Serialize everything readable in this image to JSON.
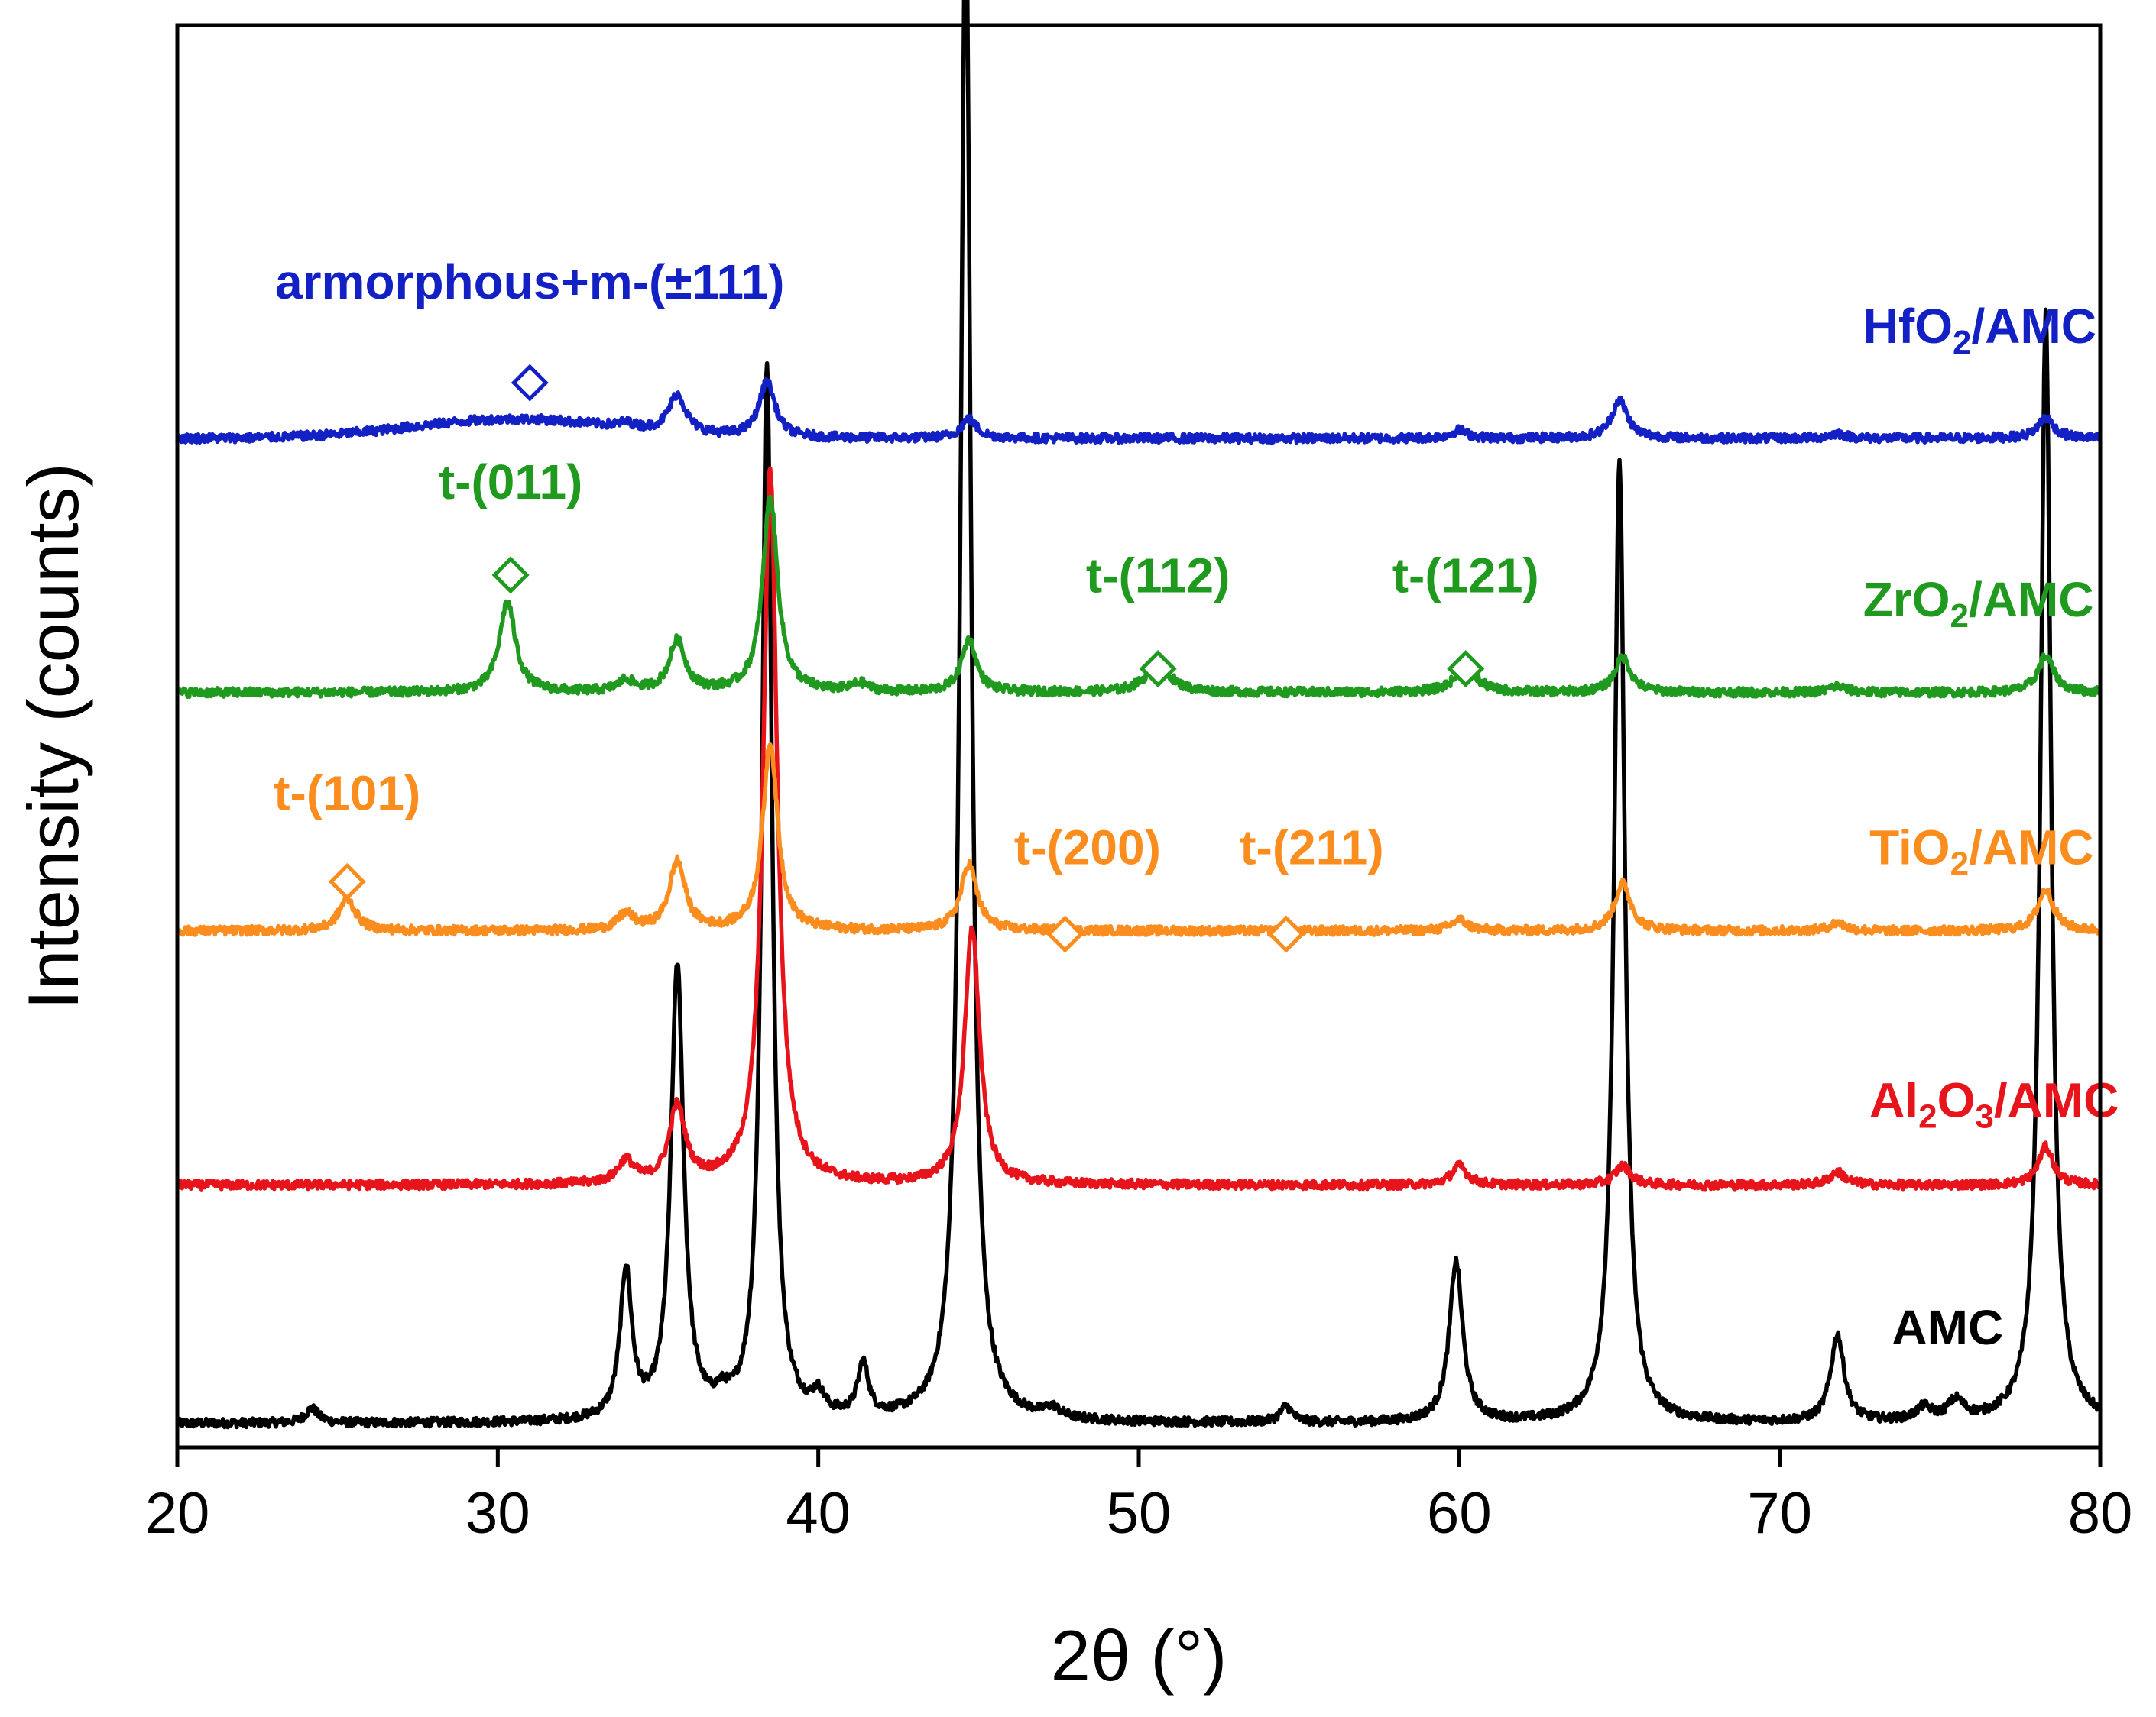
{
  "chart_data": {
    "type": "line",
    "title": "",
    "xlabel": "2θ (°)",
    "ylabel": "Intensity (counts)",
    "xlim": [
      20,
      80
    ],
    "xticks": [
      20,
      30,
      40,
      50,
      60,
      70,
      80
    ],
    "yticks_shown": false,
    "y_scale_note": "stacked patterns, arbitrary offset units (0 = AMC baseline)",
    "series": [
      {
        "name": "AMC",
        "label_main": "AMC",
        "label_sub": "",
        "label_rest": "",
        "color": "#000000",
        "offset": 0,
        "baseline": 0,
        "peaks": [
          [
            24.2,
            0.9,
            0.25
          ],
          [
            34.0,
            9.3,
            0.22
          ],
          [
            35.6,
            28.5,
            0.24
          ],
          [
            37.0,
            0.8,
            0.25
          ],
          [
            38.4,
            66.3,
            0.19
          ],
          [
            40.0,
            1.2,
            0.22
          ],
          [
            41.4,
            3.3,
            0.2
          ],
          [
            44.6,
            95.6,
            0.2
          ],
          [
            47.3,
            0.6,
            0.3
          ],
          [
            54.6,
            1.0,
            0.22
          ],
          [
            59.9,
            10.1,
            0.25
          ],
          [
            65.0,
            60.5,
            0.2
          ],
          [
            71.8,
            5.5,
            0.25
          ],
          [
            74.5,
            0.8,
            0.3
          ],
          [
            75.5,
            1.2,
            0.3
          ],
          [
            78.3,
            69.8,
            0.2
          ]
        ],
        "label_pos_x": 73.5,
        "label_pos_y": 5
      },
      {
        "name": "Al2O3/AMC",
        "label_main": "Al",
        "label_sub": "2",
        "label_mid": "O",
        "label_sub2": "3",
        "label_rest": "/AMC",
        "color": "#e8141b",
        "offset": 15,
        "baseline": 0,
        "peaks": [
          [
            34.0,
            1.4,
            0.3
          ],
          [
            35.6,
            4.8,
            0.3
          ],
          [
            38.5,
            45.0,
            0.26
          ],
          [
            44.8,
            16.2,
            0.28
          ],
          [
            60.0,
            1.2,
            0.3
          ],
          [
            65.1,
            1.2,
            0.3
          ],
          [
            71.8,
            0.8,
            0.3
          ],
          [
            78.3,
            2.4,
            0.28
          ]
        ],
        "label_pos_x": 72.8,
        "label_pos_y": 19.3
      },
      {
        "name": "TiO2/AMC",
        "label_main": "TiO",
        "label_sub": "2",
        "label_mid": "",
        "label_sub2": "",
        "label_rest": "/AMC",
        "color": "#fb8c1e",
        "offset": 31,
        "baseline": 0,
        "peaks": [
          [
            25.3,
            2.0,
            0.32
          ],
          [
            34.0,
            1.0,
            0.3
          ],
          [
            35.6,
            4.3,
            0.3
          ],
          [
            38.5,
            11.8,
            0.28
          ],
          [
            44.7,
            4.2,
            0.3
          ],
          [
            60.0,
            0.7,
            0.3
          ],
          [
            65.1,
            3.0,
            0.3
          ],
          [
            71.8,
            0.5,
            0.3
          ],
          [
            78.3,
            2.6,
            0.3
          ]
        ],
        "label_pos_x": 72.8,
        "label_pos_y": 35.2
      },
      {
        "name": "ZrO2/AMC",
        "label_main": "ZrO",
        "label_sub": "2",
        "label_mid": "",
        "label_sub2": "",
        "label_rest": "/AMC",
        "color": "#1f9a1f",
        "offset": 46,
        "baseline": 0,
        "peaks": [
          [
            30.3,
            5.7,
            0.3
          ],
          [
            34.0,
            0.7,
            0.3
          ],
          [
            35.6,
            3.2,
            0.3
          ],
          [
            38.5,
            12.3,
            0.28
          ],
          [
            41.3,
            0.5,
            0.3
          ],
          [
            44.7,
            3.3,
            0.28
          ],
          [
            50.6,
            1.8,
            0.45
          ],
          [
            60.2,
            1.6,
            0.4
          ],
          [
            65.1,
            2.2,
            0.3
          ],
          [
            71.8,
            0.4,
            0.3
          ],
          [
            78.3,
            2.3,
            0.3
          ]
        ],
        "label_pos_x": 72.6,
        "label_pos_y": 50.8
      },
      {
        "name": "HfO2/AMC",
        "label_main": "HfO",
        "label_sub": "2",
        "label_mid": "",
        "label_sub2": "",
        "label_rest": "/AMC",
        "color": "#1320c4",
        "offset": 62,
        "baseline": 0,
        "hump": {
          "center": 30.5,
          "height": 1.2,
          "width": 4.5
        },
        "peaks": [
          [
            34.0,
            0.3,
            0.3
          ],
          [
            35.6,
            2.4,
            0.32
          ],
          [
            38.4,
            3.5,
            0.3
          ],
          [
            44.7,
            1.2,
            0.3
          ],
          [
            60.0,
            0.5,
            0.3
          ],
          [
            65.0,
            2.4,
            0.3
          ],
          [
            71.8,
            0.3,
            0.3
          ],
          [
            78.3,
            1.3,
            0.3
          ]
        ],
        "label_pos_x": 72.6,
        "label_pos_y": 68
      }
    ],
    "annotations": [
      {
        "text": "armorphous+m-(±111)",
        "color": "#1320c4",
        "marker_x": 31.0,
        "marker_y": 65.5,
        "text_x": 31.0,
        "text_y": 70.8
      },
      {
        "text": "t-(011)",
        "color": "#1f9a1f",
        "marker_x": 30.4,
        "marker_y": 53.4,
        "text_x": 30.4,
        "text_y": 58.2
      },
      {
        "text": "t-(112)",
        "color": "#1f9a1f",
        "marker_x": 50.6,
        "marker_y": 47.5,
        "text_x": 50.6,
        "text_y": 52.3
      },
      {
        "text": "t-(121)",
        "color": "#1f9a1f",
        "marker_x": 60.2,
        "marker_y": 47.5,
        "text_x": 60.2,
        "text_y": 52.3
      },
      {
        "text": "t-(101)",
        "color": "#fb8c1e",
        "marker_x": 25.3,
        "marker_y": 34.1,
        "text_x": 25.3,
        "text_y": 38.6
      },
      {
        "text": "t-(200)",
        "color": "#fb8c1e",
        "marker_x": 47.7,
        "marker_y": 30.8,
        "text_x": 48.4,
        "text_y": 35.2
      },
      {
        "text": "t-(211)",
        "color": "#fb8c1e",
        "marker_x": 54.6,
        "marker_y": 30.8,
        "text_x": 55.4,
        "text_y": 35.2
      }
    ],
    "ylim": [
      -1.5,
      88
    ]
  }
}
